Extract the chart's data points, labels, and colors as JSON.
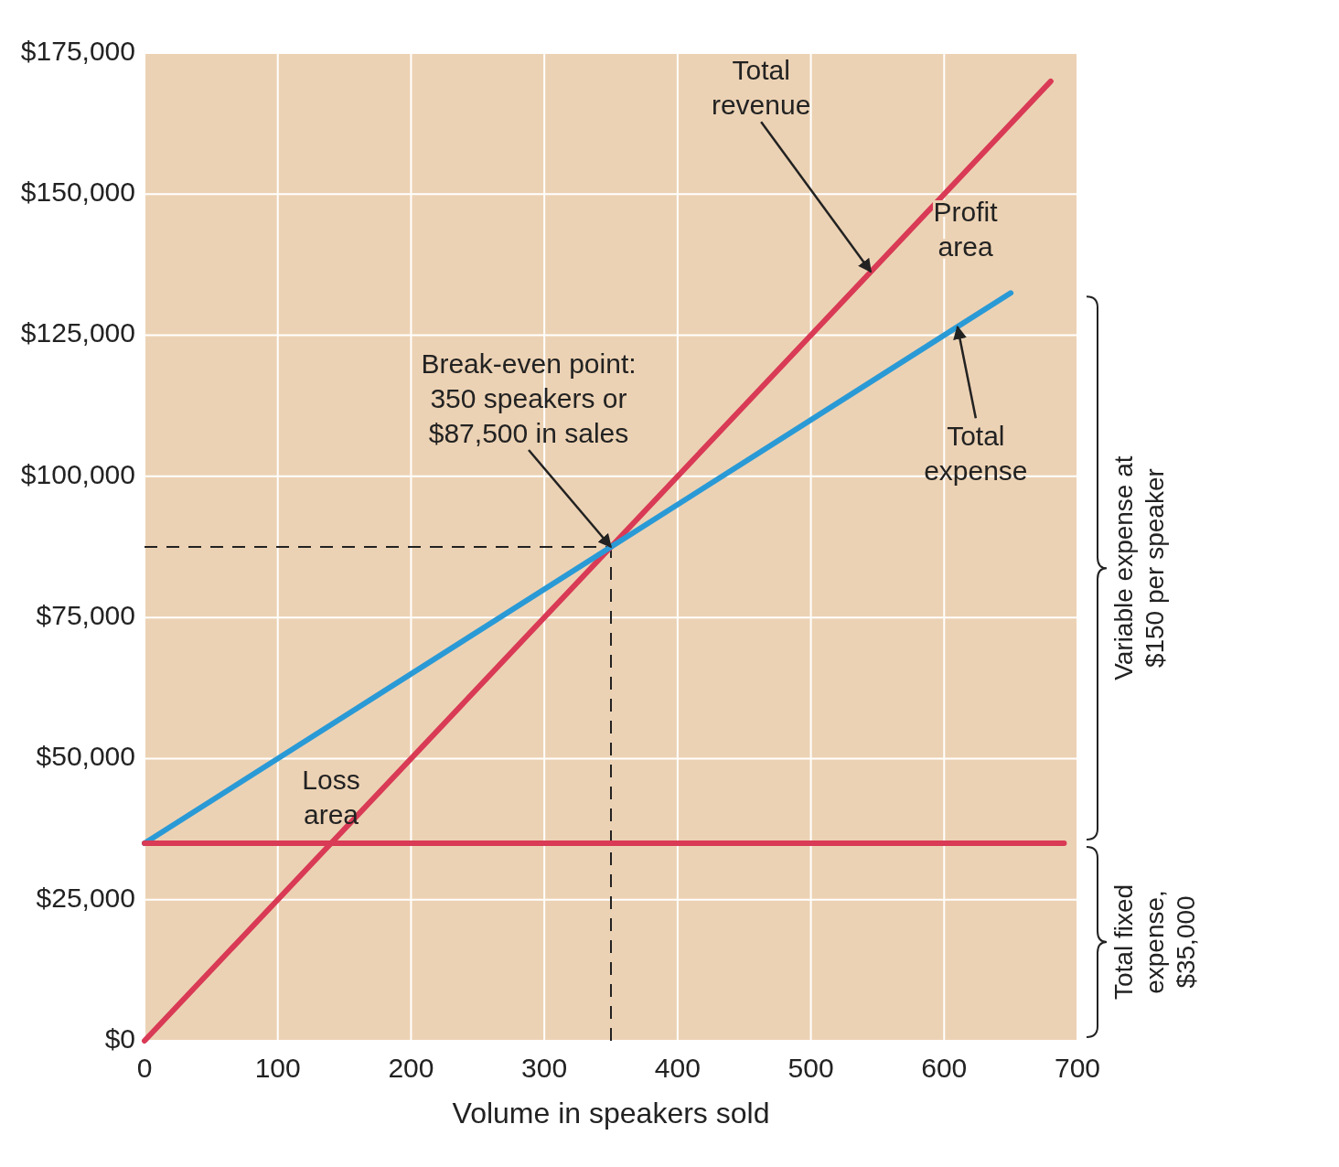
{
  "chart_data": {
    "type": "line",
    "xlabel": "Volume in speakers sold",
    "xlim": [
      0,
      700
    ],
    "xticks": [
      0,
      100,
      200,
      300,
      400,
      500,
      600,
      700
    ],
    "ylim": [
      0,
      175000
    ],
    "yticks": [
      {
        "value": 0,
        "label": "$0"
      },
      {
        "value": 25000,
        "label": "$25,000"
      },
      {
        "value": 50000,
        "label": "$50,000"
      },
      {
        "value": 75000,
        "label": "$75,000"
      },
      {
        "value": 100000,
        "label": "$100,000"
      },
      {
        "value": 125000,
        "label": "$125,000"
      },
      {
        "value": 150000,
        "label": "$150,000"
      },
      {
        "value": 175000,
        "label": "$175,000"
      }
    ],
    "grid": true,
    "line_style": "solid",
    "series": [
      {
        "color": "#d93a55",
        "x": [
          0,
          680
        ],
        "values": [
          0,
          170000
        ]
      },
      {
        "color": "#2a9ad6",
        "x": [
          0,
          650
        ],
        "values": [
          35000,
          132500
        ]
      },
      {
        "color": "#d93a55",
        "x": [
          0,
          690
        ],
        "values": [
          35000,
          35000
        ]
      }
    ],
    "ref_lines": [
      {
        "axis": "x",
        "value": 350,
        "line_style": "dashed",
        "color": "#222222"
      },
      {
        "axis": "y",
        "value": 87500,
        "line_style": "dashed",
        "color": "#222222"
      }
    ],
    "annotations": [
      {
        "text": "Total revenue",
        "x": 545,
        "y": 136250
      },
      {
        "text": "Total expense",
        "x": 610,
        "y": 126500
      },
      {
        "text": "Break-even point: 350 speakers or $87,500 in sales",
        "x": 350,
        "y": 87500
      },
      "Loss area",
      "Profit area",
      "Variable expense at $150 per speaker",
      "Total fixed expense, $35,000"
    ]
  }
}
